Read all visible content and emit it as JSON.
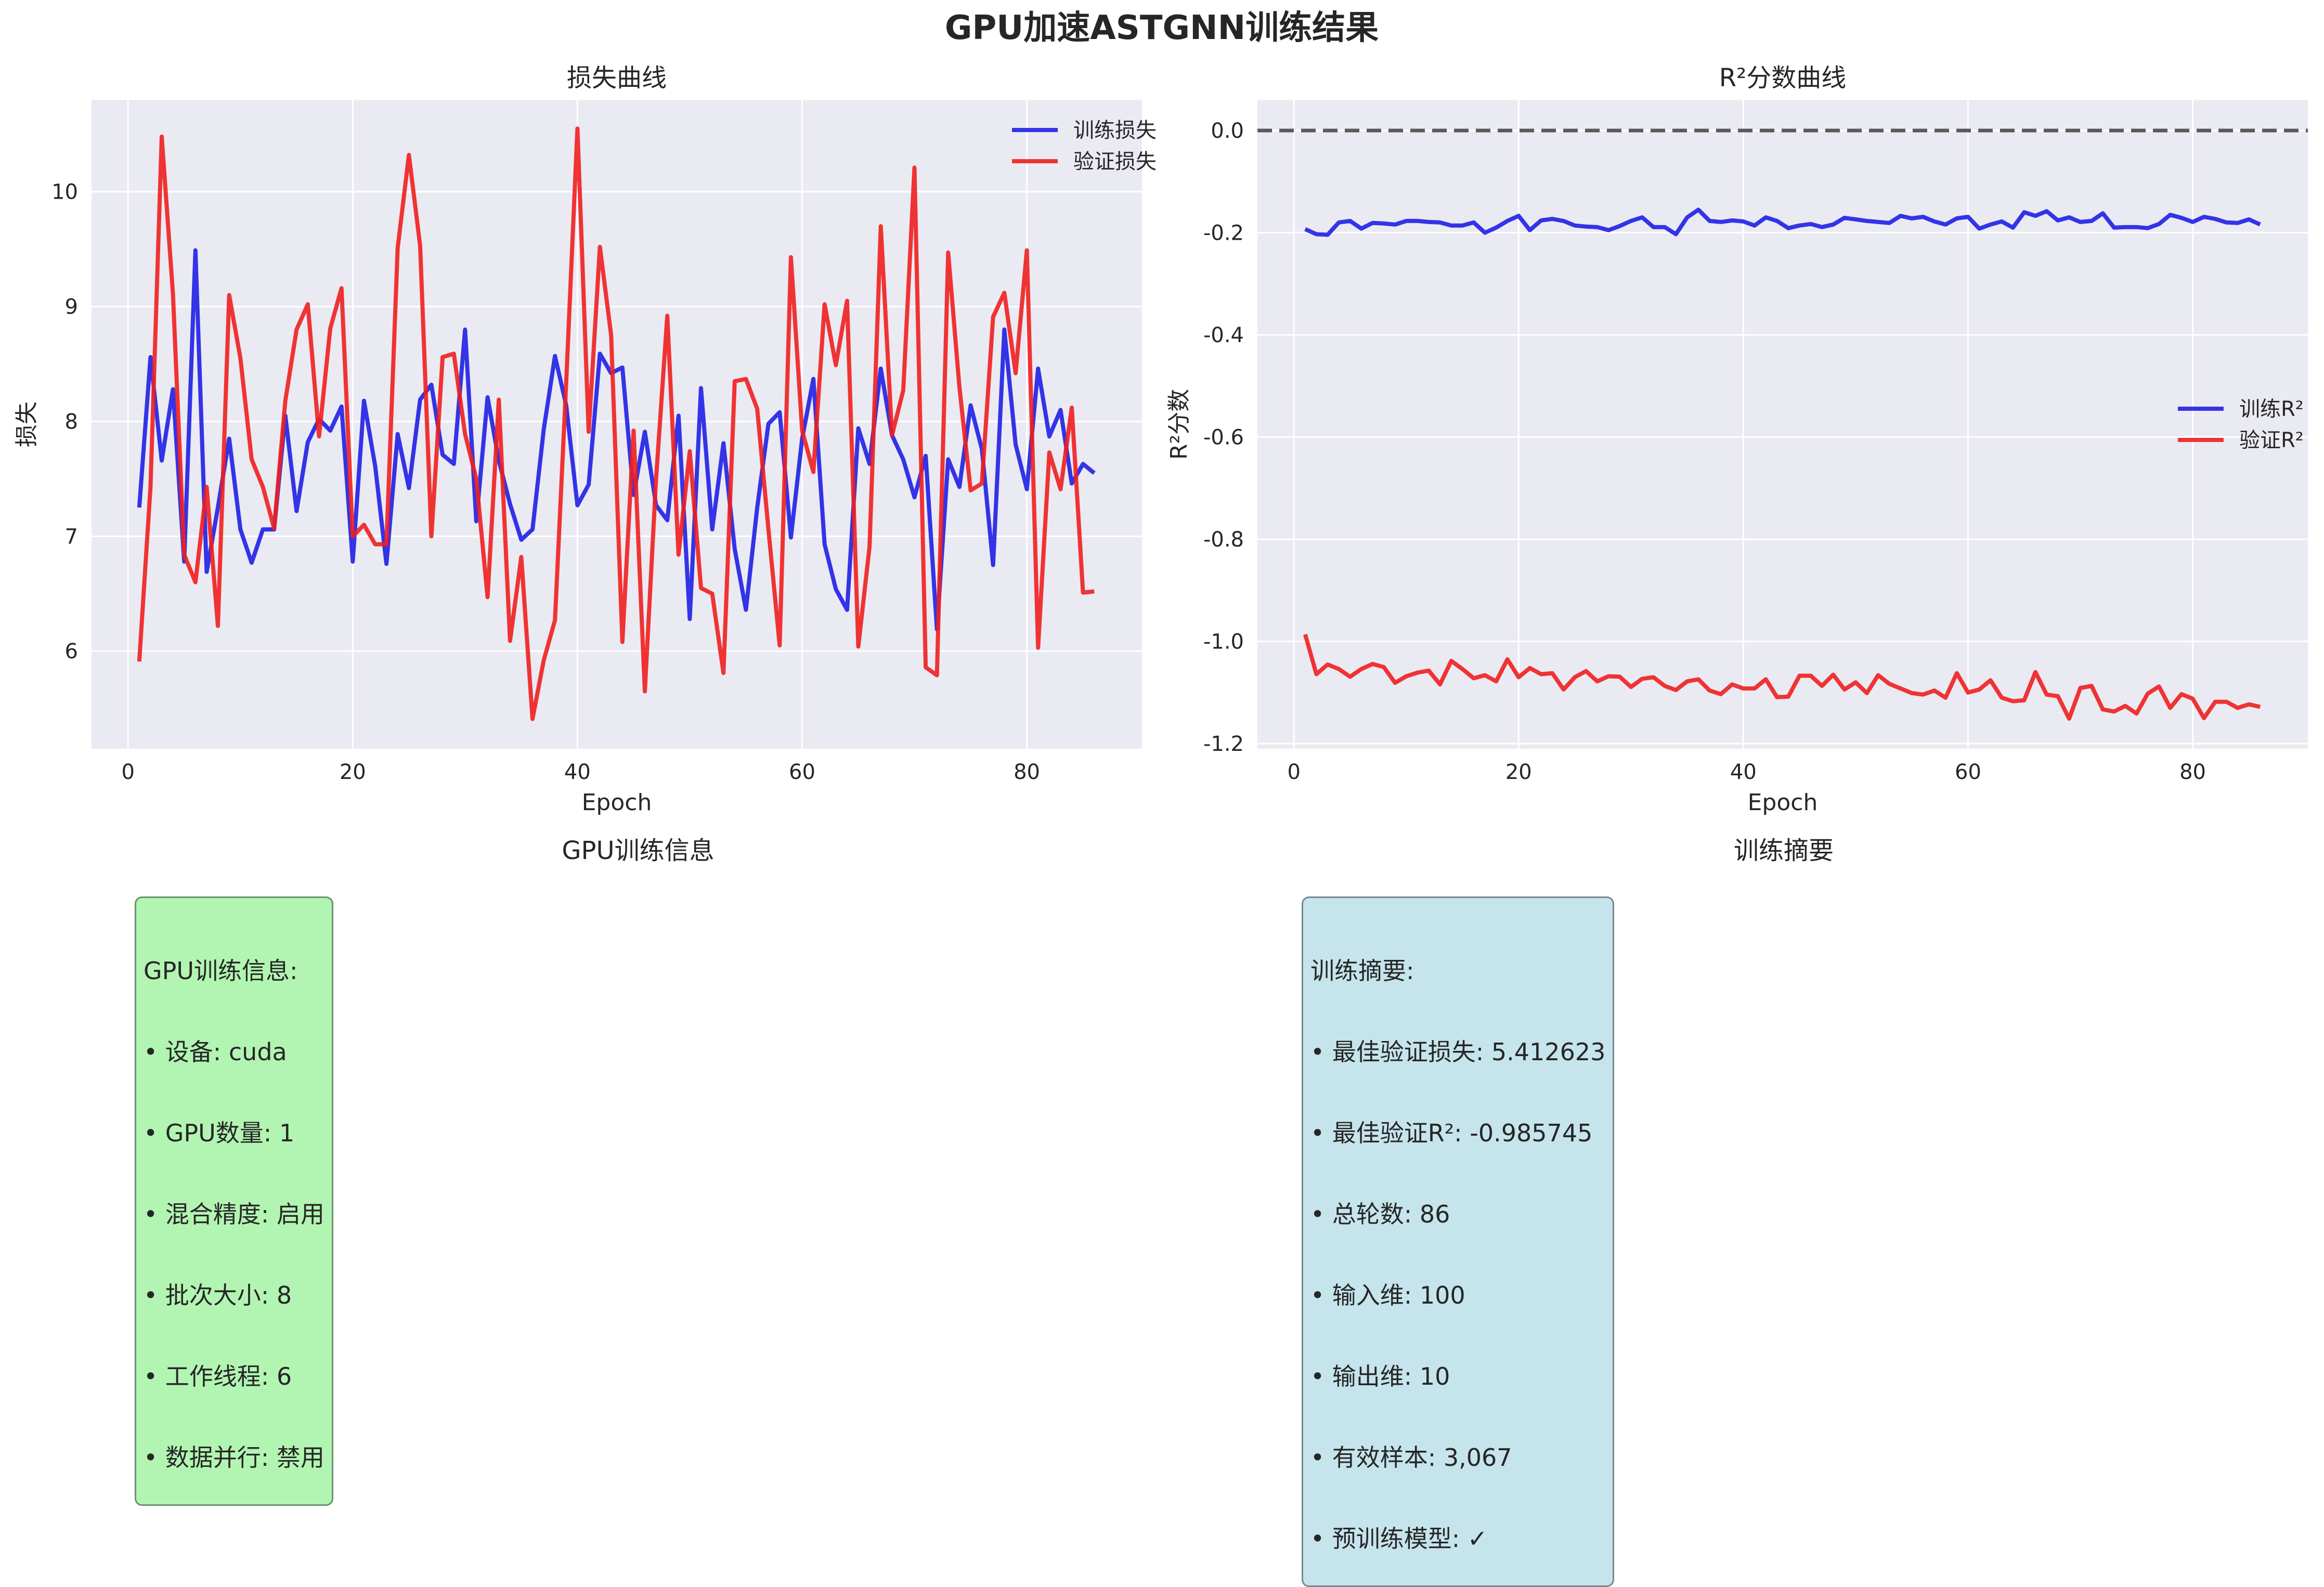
{
  "figure": {
    "title": "GPU加速ASTGNN训练结果"
  },
  "colors": {
    "train": "#1f1fe6",
    "val": "#ef1f1f",
    "axes_bg": "#eaeaf2",
    "grid": "#ffffff",
    "zero_line": "#595959"
  },
  "chart_data": [
    {
      "type": "line",
      "title": "损失曲线",
      "xlabel": "Epoch",
      "ylabel": "损失",
      "xlim": [
        -3.25,
        90.25
      ],
      "ylim": [
        5.15,
        10.8
      ],
      "xticks": [
        0,
        20,
        40,
        60,
        80
      ],
      "yticks": [
        6,
        7,
        8,
        9,
        10
      ],
      "grid": true,
      "legend": "upper right",
      "x_start": 1,
      "series": [
        {
          "name": "训练损失",
          "color_key": "train",
          "values": [
            7.25,
            8.56,
            7.66,
            8.28,
            6.78,
            9.49,
            6.69,
            7.25,
            7.85,
            7.06,
            6.77,
            7.06,
            7.06,
            8.05,
            7.22,
            7.82,
            8.02,
            7.92,
            8.13,
            6.78,
            8.18,
            7.61,
            6.76,
            7.89,
            7.42,
            8.19,
            8.32,
            7.71,
            7.63,
            8.8,
            7.13,
            8.21,
            7.66,
            7.28,
            6.97,
            7.06,
            7.93,
            8.57,
            8.14,
            7.27,
            7.45,
            8.59,
            8.42,
            8.47,
            7.36,
            7.91,
            7.27,
            7.14,
            8.05,
            6.28,
            8.29,
            7.06,
            7.81,
            6.89,
            6.36,
            7.25,
            7.98,
            8.08,
            6.99,
            7.85,
            8.37,
            6.93,
            6.54,
            6.36,
            7.94,
            7.63,
            8.46,
            7.88,
            7.67,
            7.34,
            7.7,
            6.19,
            7.67,
            7.43,
            8.14,
            7.76,
            6.75,
            8.8,
            7.8,
            7.41,
            8.46,
            7.87,
            8.1,
            7.46,
            7.63,
            7.55
          ]
        },
        {
          "name": "验证损失",
          "color_key": "val",
          "values": [
            5.91,
            7.43,
            10.48,
            9.11,
            6.84,
            6.6,
            7.43,
            6.22,
            9.1,
            8.55,
            7.67,
            7.43,
            7.07,
            8.18,
            8.8,
            9.02,
            7.87,
            8.81,
            9.16,
            7.0,
            7.1,
            6.93,
            6.93,
            9.51,
            10.32,
            9.53,
            7.0,
            8.56,
            8.59,
            7.89,
            7.5,
            6.47,
            8.19,
            6.09,
            6.82,
            5.41,
            5.92,
            6.27,
            8.34,
            10.55,
            7.91,
            9.52,
            8.75,
            6.08,
            7.92,
            5.65,
            7.5,
            8.92,
            6.84,
            7.74,
            6.55,
            6.5,
            5.81,
            8.35,
            8.37,
            8.11,
            7.06,
            6.05,
            9.43,
            7.92,
            7.56,
            9.02,
            8.49,
            9.05,
            6.04,
            6.91,
            9.7,
            7.88,
            8.27,
            10.21,
            5.86,
            5.79,
            9.47,
            8.3,
            7.4,
            7.46,
            8.91,
            9.12,
            8.42,
            9.49,
            6.03,
            7.73,
            7.41,
            8.12,
            6.51,
            6.52
          ]
        }
      ]
    },
    {
      "type": "line",
      "title": "R²分数曲线",
      "xlabel": "Epoch",
      "ylabel": "R²分数",
      "xlim": [
        -3.25,
        90.25
      ],
      "ylim": [
        -1.21,
        0.06
      ],
      "xticks": [
        0,
        20,
        40,
        60,
        80
      ],
      "yticks": [
        0.0,
        -0.2,
        -0.4,
        -0.6,
        -0.8,
        -1.0,
        -1.2
      ],
      "yticklabels": [
        "0.0",
        "-0.2",
        "-0.4",
        "-0.6",
        "-0.8",
        "-1.0",
        "-1.2"
      ],
      "grid": true,
      "legend": "center right",
      "reference_line": 0.0,
      "x_start": 1,
      "series": [
        {
          "name": "训练R²",
          "color_key": "train",
          "values": [
            -0.193,
            -0.203,
            -0.204,
            -0.18,
            -0.177,
            -0.192,
            -0.181,
            -0.182,
            -0.184,
            -0.177,
            -0.177,
            -0.179,
            -0.18,
            -0.186,
            -0.186,
            -0.18,
            -0.2,
            -0.19,
            -0.177,
            -0.167,
            -0.195,
            -0.176,
            -0.173,
            -0.177,
            -0.186,
            -0.188,
            -0.189,
            -0.195,
            -0.187,
            -0.177,
            -0.17,
            -0.189,
            -0.189,
            -0.203,
            -0.17,
            -0.155,
            -0.177,
            -0.179,
            -0.176,
            -0.178,
            -0.186,
            -0.17,
            -0.177,
            -0.191,
            -0.186,
            -0.183,
            -0.189,
            -0.184,
            -0.171,
            -0.174,
            -0.177,
            -0.179,
            -0.181,
            -0.167,
            -0.172,
            -0.169,
            -0.178,
            -0.184,
            -0.172,
            -0.169,
            -0.192,
            -0.184,
            -0.178,
            -0.19,
            -0.16,
            -0.167,
            -0.158,
            -0.176,
            -0.17,
            -0.179,
            -0.177,
            -0.162,
            -0.19,
            -0.189,
            -0.189,
            -0.191,
            -0.183,
            -0.165,
            -0.171,
            -0.179,
            -0.169,
            -0.173,
            -0.18,
            -0.181,
            -0.174,
            -0.184
          ]
        },
        {
          "name": "验证R²",
          "color_key": "val",
          "values": [
            -0.986,
            -1.064,
            -1.045,
            -1.054,
            -1.069,
            -1.054,
            -1.044,
            -1.05,
            -1.081,
            -1.068,
            -1.061,
            -1.057,
            -1.084,
            -1.038,
            -1.054,
            -1.072,
            -1.066,
            -1.078,
            -1.035,
            -1.07,
            -1.052,
            -1.064,
            -1.062,
            -1.094,
            -1.07,
            -1.058,
            -1.078,
            -1.068,
            -1.069,
            -1.089,
            -1.073,
            -1.07,
            -1.087,
            -1.095,
            -1.078,
            -1.074,
            -1.096,
            -1.103,
            -1.084,
            -1.092,
            -1.092,
            -1.074,
            -1.109,
            -1.108,
            -1.067,
            -1.067,
            -1.087,
            -1.065,
            -1.094,
            -1.08,
            -1.101,
            -1.066,
            -1.083,
            -1.092,
            -1.101,
            -1.104,
            -1.096,
            -1.11,
            -1.062,
            -1.1,
            -1.094,
            -1.076,
            -1.11,
            -1.117,
            -1.115,
            -1.06,
            -1.104,
            -1.107,
            -1.151,
            -1.091,
            -1.087,
            -1.133,
            -1.137,
            -1.126,
            -1.141,
            -1.102,
            -1.088,
            -1.13,
            -1.103,
            -1.112,
            -1.15,
            -1.118,
            -1.118,
            -1.13,
            -1.123,
            -1.128
          ]
        }
      ]
    }
  ],
  "panels": {
    "gpu": {
      "title": "GPU训练信息",
      "lines": [
        "GPU训练信息:",
        "• 设备: cuda",
        "• GPU数量: 1",
        "• 混合精度: 启用",
        "• 批次大小: 8",
        "• 工作线程: 6",
        "• 数据并行: 禁用"
      ]
    },
    "training": {
      "title": "训练摘要",
      "lines": [
        "训练摘要:",
        "• 最佳验证损失: 5.412623",
        "• 最佳验证R²: -0.985745",
        "• 总轮数: 86",
        "• 输入维: 100",
        "• 输出维: 10",
        "• 有效样本: 3,067",
        "• 预训练模型: ✓"
      ]
    }
  }
}
